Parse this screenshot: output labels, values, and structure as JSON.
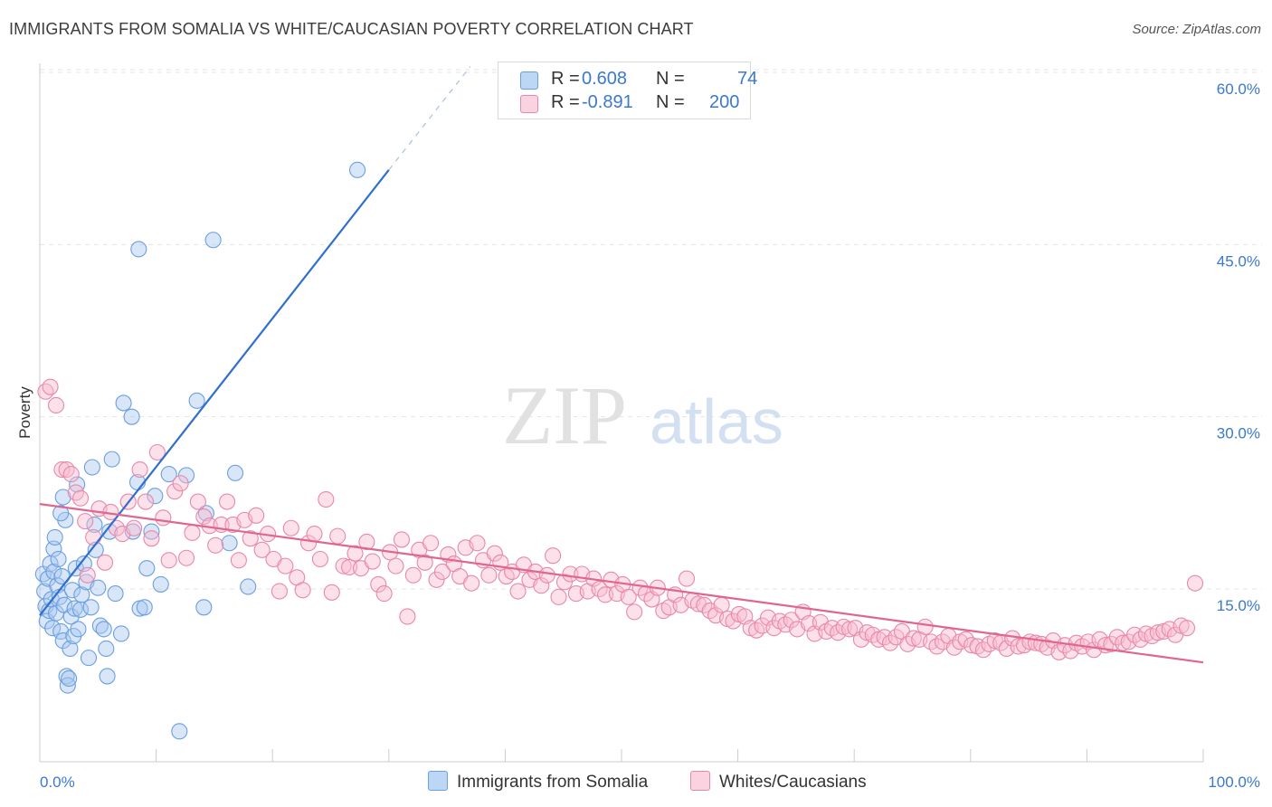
{
  "title": "IMMIGRANTS FROM SOMALIA VS WHITE/CAUCASIAN POVERTY CORRELATION CHART",
  "source": "Source: ZipAtlas.com",
  "watermark": {
    "zip": "ZIP",
    "atlas": "atlas"
  },
  "legend": {
    "rows": [
      {
        "r_label": "R =",
        "r_value": "0.608",
        "n_label": "N =",
        "n_value": "74",
        "color": "#a8c8f0",
        "border": "#6a9fe0"
      },
      {
        "r_label": "R =",
        "r_value": "-0.891",
        "n_label": "N =",
        "n_value": "200",
        "color": "#f8bcd0",
        "border": "#e888a8"
      }
    ]
  },
  "chart_data": {
    "type": "scatter",
    "title": "IMMIGRANTS FROM SOMALIA VS WHITE/CAUCASIAN POVERTY CORRELATION CHART",
    "xlabel": "",
    "ylabel": "Poverty",
    "xlim": [
      0,
      100
    ],
    "ylim": [
      0,
      65
    ],
    "x_tick_labels": [
      "0.0%",
      "100.0%"
    ],
    "y_ticks": [
      15,
      30,
      45,
      60
    ],
    "y_tick_labels": [
      "15.0%",
      "30.0%",
      "45.0%",
      "60.0%"
    ],
    "grid": true,
    "legend_position": "top-center",
    "series": [
      {
        "name": "Immigrants from Somalia",
        "color": "#a8c8f0",
        "stroke": "#6a9fe0",
        "trend_color": "#2f6fd0",
        "trend": {
          "x0": 0.0,
          "y0": 12.7,
          "x1": 30.0,
          "y1": 51.5,
          "dash_to_x": 37.0,
          "dash_to_y": 60.5
        },
        "points": [
          [
            0.3,
            16.3
          ],
          [
            0.4,
            14.8
          ],
          [
            0.5,
            13.5
          ],
          [
            0.6,
            12.2
          ],
          [
            0.7,
            15.9
          ],
          [
            0.8,
            13.1
          ],
          [
            0.9,
            17.2
          ],
          [
            1.0,
            14.1
          ],
          [
            1.1,
            11.6
          ],
          [
            1.2,
            16.5
          ],
          [
            1.2,
            18.5
          ],
          [
            1.3,
            19.5
          ],
          [
            1.4,
            12.9
          ],
          [
            1.5,
            15.3
          ],
          [
            1.6,
            17.6
          ],
          [
            1.7,
            14.3
          ],
          [
            1.8,
            11.3
          ],
          [
            1.9,
            16.1
          ],
          [
            2.0,
            10.5
          ],
          [
            2.1,
            13.6
          ],
          [
            2.2,
            21.0
          ],
          [
            2.3,
            7.4
          ],
          [
            2.4,
            6.6
          ],
          [
            2.5,
            7.2
          ],
          [
            2.6,
            9.8
          ],
          [
            2.7,
            12.6
          ],
          [
            2.8,
            14.9
          ],
          [
            2.9,
            10.9
          ],
          [
            3.0,
            13.3
          ],
          [
            3.1,
            16.8
          ],
          [
            3.3,
            11.5
          ],
          [
            3.5,
            13.2
          ],
          [
            3.6,
            14.5
          ],
          [
            3.8,
            17.2
          ],
          [
            4.0,
            15.6
          ],
          [
            4.2,
            9.0
          ],
          [
            4.4,
            13.4
          ],
          [
            4.5,
            25.6
          ],
          [
            4.7,
            20.6
          ],
          [
            4.8,
            18.4
          ],
          [
            5.0,
            15.1
          ],
          [
            5.2,
            11.8
          ],
          [
            5.5,
            11.5
          ],
          [
            5.7,
            9.8
          ],
          [
            5.8,
            7.4
          ],
          [
            6.0,
            20.0
          ],
          [
            6.2,
            26.3
          ],
          [
            6.5,
            14.6
          ],
          [
            7.0,
            11.1
          ],
          [
            7.2,
            31.2
          ],
          [
            7.9,
            30.0
          ],
          [
            8.0,
            20.0
          ],
          [
            8.4,
            24.3
          ],
          [
            8.5,
            44.6
          ],
          [
            8.6,
            13.3
          ],
          [
            9.0,
            13.4
          ],
          [
            9.2,
            16.8
          ],
          [
            9.6,
            20.0
          ],
          [
            9.9,
            23.1
          ],
          [
            10.4,
            15.4
          ],
          [
            11.1,
            25.0
          ],
          [
            12.0,
            2.6
          ],
          [
            12.6,
            24.9
          ],
          [
            13.5,
            31.4
          ],
          [
            14.1,
            13.4
          ],
          [
            14.3,
            21.6
          ],
          [
            14.9,
            45.4
          ],
          [
            16.3,
            19.0
          ],
          [
            16.8,
            25.1
          ],
          [
            17.9,
            15.2
          ],
          [
            27.3,
            51.5
          ],
          [
            1.8,
            21.6
          ],
          [
            3.2,
            24.1
          ],
          [
            2.0,
            23.0
          ]
        ]
      },
      {
        "name": "Whites/Caucasians",
        "color": "#f8bcd0",
        "stroke": "#e888a8",
        "trend_color": "#e0668f",
        "trend": {
          "x0": 0.0,
          "y0": 22.4,
          "x1": 100.0,
          "y1": 8.6
        },
        "points": [
          [
            0.5,
            32.2
          ],
          [
            0.9,
            32.6
          ],
          [
            1.4,
            31.0
          ],
          [
            1.9,
            25.4
          ],
          [
            2.3,
            25.4
          ],
          [
            2.7,
            25.0
          ],
          [
            3.1,
            23.4
          ],
          [
            3.5,
            22.9
          ],
          [
            3.9,
            20.9
          ],
          [
            4.1,
            16.2
          ],
          [
            4.6,
            19.5
          ],
          [
            5.1,
            22.0
          ],
          [
            5.6,
            17.3
          ],
          [
            6.1,
            21.7
          ],
          [
            6.6,
            20.3
          ],
          [
            7.1,
            19.8
          ],
          [
            7.6,
            22.6
          ],
          [
            8.1,
            20.3
          ],
          [
            8.6,
            25.4
          ],
          [
            9.1,
            22.6
          ],
          [
            9.6,
            19.4
          ],
          [
            10.1,
            26.9
          ],
          [
            10.6,
            21.2
          ],
          [
            11.1,
            17.5
          ],
          [
            11.6,
            23.5
          ],
          [
            12.1,
            24.2
          ],
          [
            12.6,
            17.7
          ],
          [
            13.1,
            19.9
          ],
          [
            13.6,
            22.6
          ],
          [
            14.1,
            21.3
          ],
          [
            14.6,
            20.5
          ],
          [
            15.1,
            18.8
          ],
          [
            15.6,
            20.6
          ],
          [
            16.1,
            22.6
          ],
          [
            16.6,
            20.6
          ],
          [
            17.1,
            17.5
          ],
          [
            17.6,
            21.0
          ],
          [
            18.1,
            19.4
          ],
          [
            18.6,
            21.4
          ],
          [
            19.1,
            18.4
          ],
          [
            19.6,
            19.8
          ],
          [
            20.1,
            17.6
          ],
          [
            20.6,
            14.8
          ],
          [
            21.1,
            17.0
          ],
          [
            21.6,
            20.3
          ],
          [
            22.1,
            16.0
          ],
          [
            22.6,
            14.9
          ],
          [
            23.1,
            19.0
          ],
          [
            23.6,
            19.8
          ],
          [
            24.1,
            17.6
          ],
          [
            24.6,
            22.8
          ],
          [
            25.1,
            14.7
          ],
          [
            25.6,
            19.6
          ],
          [
            26.1,
            17.0
          ],
          [
            26.6,
            16.9
          ],
          [
            27.1,
            18.1
          ],
          [
            27.6,
            16.8
          ],
          [
            28.1,
            19.1
          ],
          [
            28.6,
            17.4
          ],
          [
            29.1,
            15.4
          ],
          [
            29.6,
            14.6
          ],
          [
            30.1,
            18.2
          ],
          [
            30.6,
            17.0
          ],
          [
            31.1,
            19.3
          ],
          [
            31.6,
            12.6
          ],
          [
            32.1,
            16.2
          ],
          [
            32.6,
            18.4
          ],
          [
            33.1,
            17.3
          ],
          [
            33.6,
            19.0
          ],
          [
            34.1,
            15.8
          ],
          [
            34.6,
            16.5
          ],
          [
            35.1,
            18.0
          ],
          [
            35.6,
            17.2
          ],
          [
            36.1,
            16.1
          ],
          [
            36.6,
            18.6
          ],
          [
            37.1,
            15.5
          ],
          [
            37.6,
            19.0
          ],
          [
            38.1,
            17.5
          ],
          [
            38.6,
            16.2
          ],
          [
            39.1,
            18.1
          ],
          [
            39.6,
            17.3
          ],
          [
            40.1,
            16.1
          ],
          [
            40.6,
            16.5
          ],
          [
            41.1,
            14.8
          ],
          [
            41.6,
            17.1
          ],
          [
            42.1,
            15.8
          ],
          [
            42.6,
            16.5
          ],
          [
            43.1,
            15.3
          ],
          [
            43.6,
            16.2
          ],
          [
            44.1,
            17.9
          ],
          [
            44.6,
            14.3
          ],
          [
            45.1,
            15.6
          ],
          [
            45.6,
            16.3
          ],
          [
            46.1,
            14.6
          ],
          [
            46.6,
            16.3
          ],
          [
            47.1,
            14.8
          ],
          [
            47.6,
            15.9
          ],
          [
            48.1,
            15.0
          ],
          [
            48.6,
            14.5
          ],
          [
            49.1,
            15.8
          ],
          [
            49.6,
            14.6
          ],
          [
            50.1,
            15.4
          ],
          [
            50.6,
            14.3
          ],
          [
            51.1,
            13.0
          ],
          [
            51.6,
            15.1
          ],
          [
            52.1,
            14.6
          ],
          [
            52.6,
            14.1
          ],
          [
            53.1,
            15.1
          ],
          [
            53.6,
            13.1
          ],
          [
            54.1,
            13.4
          ],
          [
            54.6,
            14.5
          ],
          [
            55.1,
            13.6
          ],
          [
            55.6,
            15.9
          ],
          [
            56.1,
            14.0
          ],
          [
            56.6,
            13.7
          ],
          [
            57.1,
            13.6
          ],
          [
            57.6,
            13.1
          ],
          [
            58.1,
            12.7
          ],
          [
            58.6,
            13.6
          ],
          [
            59.1,
            12.4
          ],
          [
            59.6,
            12.2
          ],
          [
            60.1,
            12.8
          ],
          [
            60.6,
            12.6
          ],
          [
            61.1,
            11.6
          ],
          [
            61.6,
            11.4
          ],
          [
            62.1,
            11.8
          ],
          [
            62.6,
            12.5
          ],
          [
            63.1,
            11.6
          ],
          [
            63.6,
            12.2
          ],
          [
            64.1,
            11.9
          ],
          [
            64.6,
            12.3
          ],
          [
            65.1,
            11.5
          ],
          [
            65.6,
            13.0
          ],
          [
            66.1,
            12.0
          ],
          [
            66.6,
            11.1
          ],
          [
            67.1,
            12.1
          ],
          [
            67.6,
            11.3
          ],
          [
            68.1,
            11.6
          ],
          [
            68.6,
            11.2
          ],
          [
            69.1,
            11.7
          ],
          [
            69.6,
            11.5
          ],
          [
            70.1,
            11.6
          ],
          [
            70.6,
            10.6
          ],
          [
            71.1,
            11.2
          ],
          [
            71.6,
            11.0
          ],
          [
            72.1,
            10.6
          ],
          [
            72.6,
            10.8
          ],
          [
            73.1,
            10.3
          ],
          [
            73.6,
            10.8
          ],
          [
            74.1,
            11.3
          ],
          [
            74.6,
            10.2
          ],
          [
            75.1,
            10.7
          ],
          [
            75.6,
            10.6
          ],
          [
            76.1,
            11.7
          ],
          [
            76.6,
            10.4
          ],
          [
            77.1,
            10.0
          ],
          [
            77.6,
            10.4
          ],
          [
            78.1,
            10.9
          ],
          [
            78.6,
            9.9
          ],
          [
            79.1,
            10.4
          ],
          [
            79.6,
            10.6
          ],
          [
            80.1,
            10.1
          ],
          [
            80.6,
            10.0
          ],
          [
            81.1,
            9.7
          ],
          [
            81.6,
            10.2
          ],
          [
            82.1,
            10.5
          ],
          [
            82.6,
            10.3
          ],
          [
            83.1,
            9.8
          ],
          [
            83.6,
            10.7
          ],
          [
            84.1,
            10.0
          ],
          [
            84.6,
            10.1
          ],
          [
            85.1,
            10.4
          ],
          [
            85.6,
            10.3
          ],
          [
            86.1,
            10.2
          ],
          [
            86.6,
            9.9
          ],
          [
            87.1,
            10.5
          ],
          [
            87.6,
            9.5
          ],
          [
            88.1,
            10.1
          ],
          [
            88.6,
            9.6
          ],
          [
            89.1,
            10.3
          ],
          [
            89.6,
            10.0
          ],
          [
            90.1,
            10.4
          ],
          [
            90.6,
            9.7
          ],
          [
            91.1,
            10.6
          ],
          [
            91.6,
            10.1
          ],
          [
            92.1,
            10.2
          ],
          [
            92.6,
            10.8
          ],
          [
            93.1,
            10.3
          ],
          [
            93.6,
            10.4
          ],
          [
            94.1,
            11.0
          ],
          [
            94.6,
            10.6
          ],
          [
            95.1,
            11.1
          ],
          [
            95.6,
            10.9
          ],
          [
            96.1,
            11.2
          ],
          [
            96.6,
            11.3
          ],
          [
            97.1,
            11.5
          ],
          [
            97.6,
            11.0
          ],
          [
            98.1,
            11.8
          ],
          [
            98.6,
            11.6
          ],
          [
            99.3,
            15.5
          ]
        ]
      }
    ]
  }
}
